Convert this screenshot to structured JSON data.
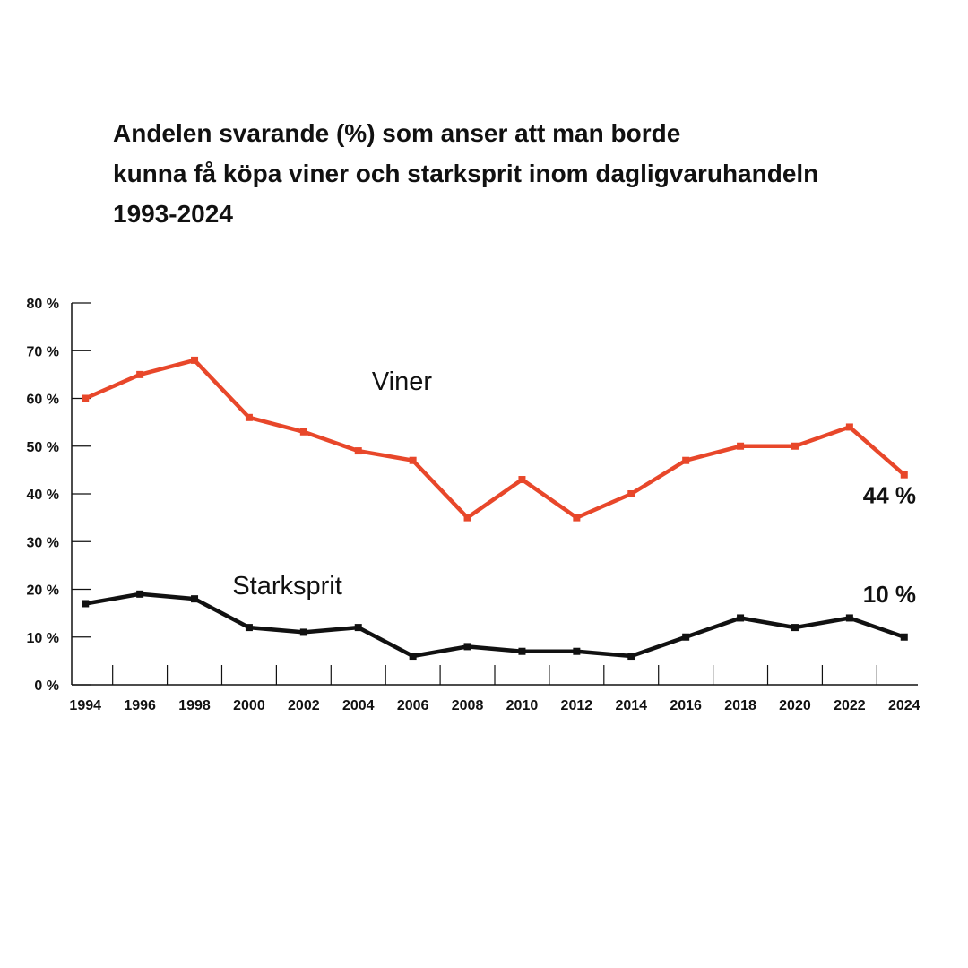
{
  "title_lines": [
    "Andelen svarande (%) som anser att man borde",
    "kunna få köpa viner och starksprit inom dagligvaruhandeln",
    "1993-2024"
  ],
  "chart_data": {
    "type": "line",
    "title": "Andelen svarande (%) som anser att man borde kunna få köpa viner och starksprit inom dagligvaruhandeln 1993-2024",
    "x_tick_labels": [
      "1994",
      "1996",
      "1998",
      "2000",
      "2002",
      "2004",
      "2006",
      "2008",
      "2010",
      "2012",
      "2014",
      "2016",
      "2018",
      "2020",
      "2022",
      "2024"
    ],
    "x": [
      1993.5,
      1995.5,
      1997.5,
      1999.5,
      2001.5,
      2003.5,
      2005.5,
      2007.5,
      2009.5,
      2011.5,
      2013.5,
      2015.5,
      2017.5,
      2019.5,
      2021.5,
      2023.5
    ],
    "xlim": [
      1993,
      2024
    ],
    "ylim": [
      0,
      80
    ],
    "y_ticks": [
      0,
      10,
      20,
      30,
      40,
      50,
      60,
      70,
      80
    ],
    "y_tick_labels": [
      "0 %",
      "10 %",
      "20 %",
      "30 %",
      "40 %",
      "50 %",
      "60 %",
      "70 %",
      "80 %"
    ],
    "grid": false,
    "series": [
      {
        "name": "Viner",
        "color": "#e8472a",
        "values": [
          60,
          65,
          68,
          56,
          53,
          49,
          47,
          35,
          43,
          35,
          40,
          47,
          50,
          50,
          54,
          44
        ],
        "end_label": "44 %"
      },
      {
        "name": "Starksprit",
        "color": "#111111",
        "values": [
          17,
          19,
          18,
          12,
          11,
          12,
          6,
          8,
          7,
          7,
          6,
          10,
          14,
          12,
          14,
          10
        ],
        "end_label": "10 %"
      }
    ]
  }
}
